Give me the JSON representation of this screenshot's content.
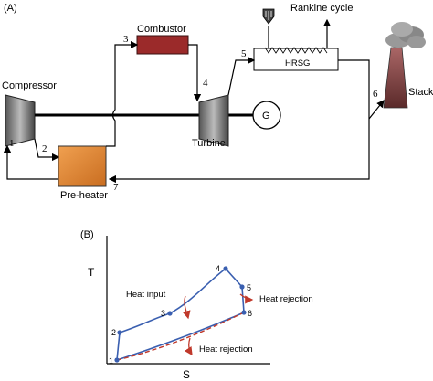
{
  "panel_a": {
    "label": "(A)",
    "compressor": "Compressor",
    "combustor": "Combustor",
    "turbine": "Turbine",
    "generator": "G",
    "hrsg": "HRSG",
    "rankine": "Rankine cycle",
    "stack": "Stack",
    "preheater": "Pre-heater",
    "states": [
      "1",
      "2",
      "3",
      "4",
      "5",
      "6",
      "7"
    ],
    "colors": {
      "combustor": "#9b2a2a",
      "preheater": "#e08a3c",
      "stack": "#8a4a4a"
    }
  },
  "panel_b": {
    "label": "(B)",
    "ylabel": "T",
    "xlabel": "S",
    "annotations": {
      "heat_input": "Heat input",
      "heat_rejection_top": "Heat rejection",
      "heat_rejection_bottom": "Heat rejection"
    },
    "points": [
      "1",
      "2",
      "3",
      "4",
      "5",
      "6"
    ],
    "colors": {
      "cycle": "#3a5fb0",
      "dashed": "#c0392b",
      "arrow": "#c0392b"
    }
  }
}
